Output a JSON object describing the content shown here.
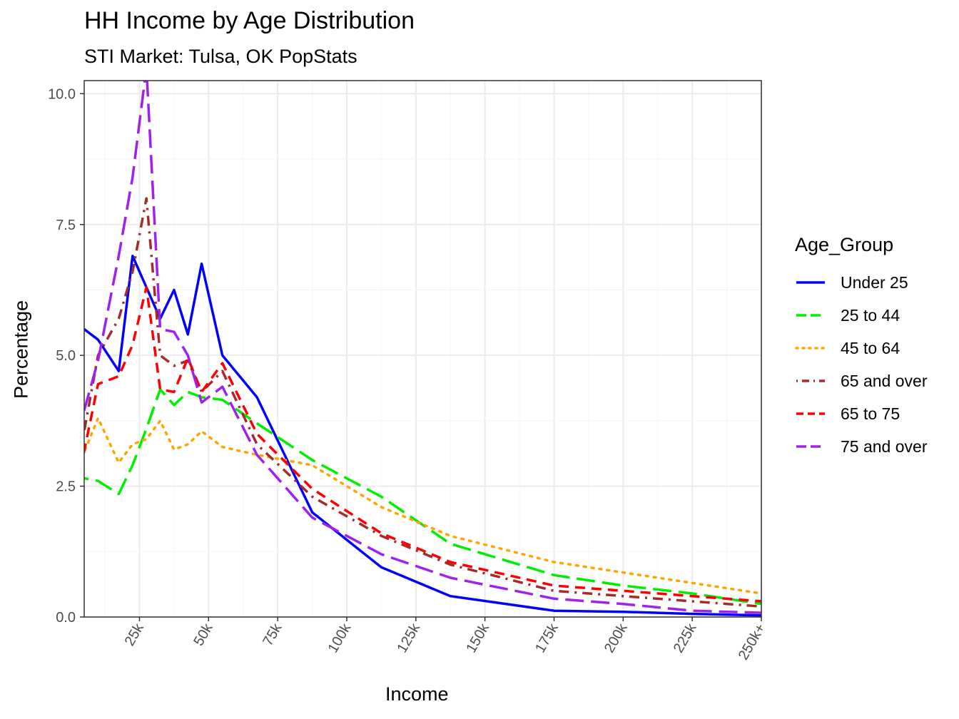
{
  "chart_data": {
    "type": "line",
    "title": "HH Income by Age Distribution",
    "subtitle": "STI Market: Tulsa, OK PopStats",
    "xlabel": "Income",
    "ylabel": "Percentage",
    "legend_title": "Age_Group",
    "legend_position": "right",
    "grid": true,
    "xlim": [
      5,
      250
    ],
    "ylim": [
      0,
      10.25
    ],
    "x_ticks": [
      "25k",
      "50k",
      "75k",
      "100k",
      "125k",
      "150k",
      "175k",
      "200k",
      "225k",
      "250k+"
    ],
    "x_tick_values": [
      25,
      50,
      75,
      100,
      125,
      150,
      175,
      200,
      225,
      250
    ],
    "y_ticks": [
      "0.0",
      "2.5",
      "5.0",
      "7.5",
      "10.0"
    ],
    "y_tick_values": [
      0,
      2.5,
      5.0,
      7.5,
      10.0
    ],
    "x": [
      0,
      10,
      17.5,
      22.5,
      27.5,
      32.5,
      37.5,
      42.5,
      47.5,
      55,
      67.5,
      87.5,
      112.5,
      137.5,
      175,
      200,
      225,
      250
    ],
    "series": [
      {
        "name": "Under 25",
        "color": "#0000FF",
        "dash": "solid",
        "values": [
          5.7,
          5.3,
          4.7,
          6.9,
          6.3,
          5.7,
          6.25,
          5.4,
          6.75,
          5.0,
          4.2,
          2.0,
          0.95,
          0.4,
          0.12,
          0.1,
          0.06,
          0.03
        ]
      },
      {
        "name": "25 to 44",
        "color": "#00EE00",
        "dash": "longdash",
        "values": [
          2.7,
          2.6,
          2.35,
          2.9,
          3.6,
          4.35,
          4.05,
          4.3,
          4.2,
          4.15,
          3.7,
          3.0,
          2.3,
          1.4,
          0.8,
          0.6,
          0.45,
          0.25
        ]
      },
      {
        "name": "45 to 64",
        "color": "#FFA500",
        "dash": "dotted",
        "values": [
          2.5,
          3.8,
          2.95,
          3.3,
          3.4,
          3.75,
          3.2,
          3.3,
          3.55,
          3.25,
          3.1,
          2.9,
          2.1,
          1.55,
          1.05,
          0.85,
          0.65,
          0.45
        ]
      },
      {
        "name": "65 and over",
        "color": "#A52A2A",
        "dash": "dotdash",
        "values": [
          2.1,
          5.0,
          5.7,
          6.6,
          8.0,
          5.0,
          4.8,
          4.9,
          4.3,
          4.7,
          3.3,
          2.3,
          1.55,
          1.0,
          0.5,
          0.4,
          0.3,
          0.2
        ]
      },
      {
        "name": "65 to 75",
        "color": "#FF0000",
        "dash": "dashed",
        "values": [
          1.9,
          4.45,
          4.6,
          5.2,
          6.3,
          4.35,
          4.3,
          4.95,
          4.3,
          4.85,
          3.5,
          2.45,
          1.6,
          1.05,
          0.6,
          0.5,
          0.4,
          0.3
        ]
      },
      {
        "name": "75 and over",
        "color": "#A020F0",
        "dash": "longdash",
        "values": [
          3.0,
          4.9,
          6.9,
          8.4,
          10.5,
          5.5,
          5.45,
          5.0,
          4.1,
          4.4,
          3.1,
          1.9,
          1.2,
          0.75,
          0.35,
          0.25,
          0.12,
          0.08
        ]
      }
    ]
  }
}
